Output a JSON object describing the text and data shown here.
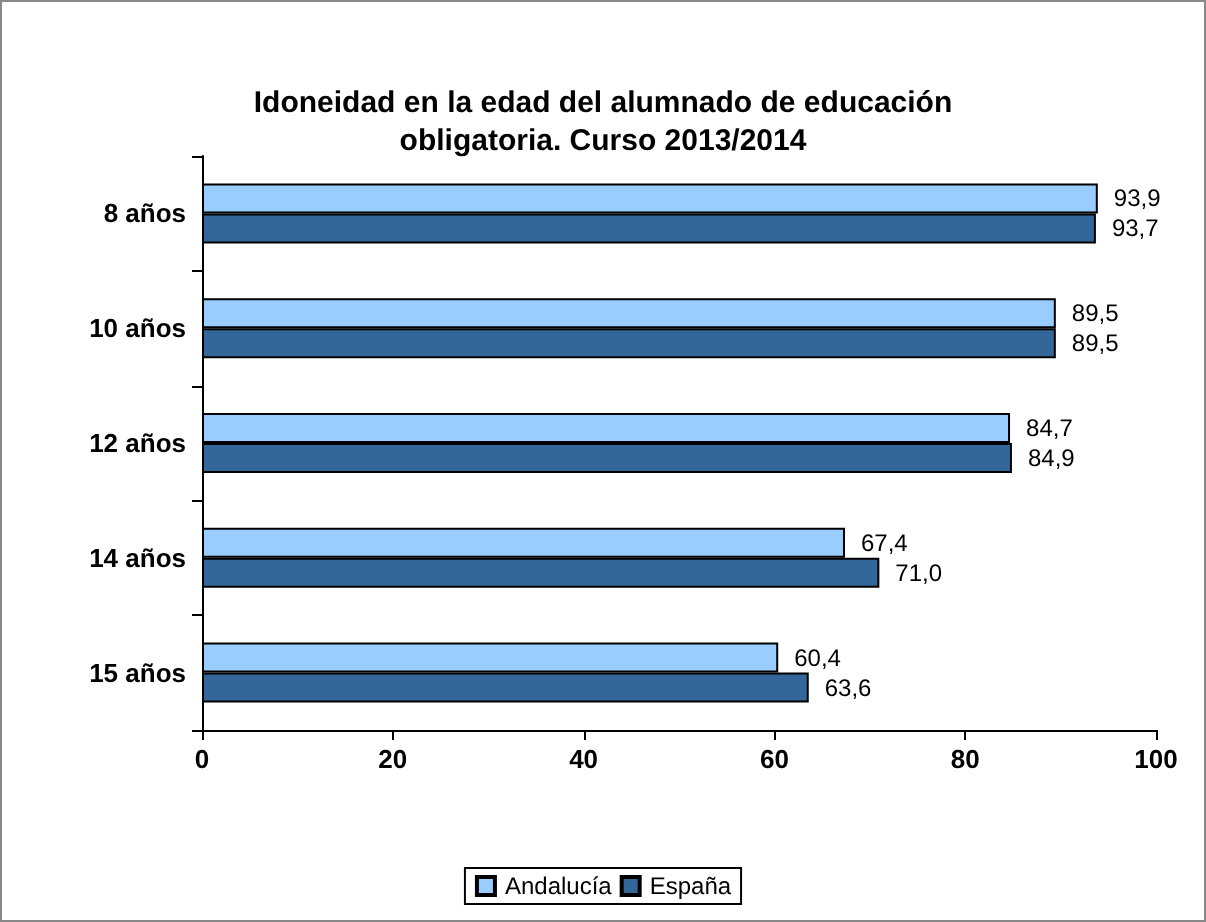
{
  "chart_data": {
    "type": "bar",
    "orientation": "horizontal",
    "title": "Idoneidad en la edad del alumnado de educación\nobligatoria. Curso 2013/2014",
    "categories": [
      "8 años",
      "10 años",
      "12 años",
      "14 años",
      "15 años"
    ],
    "series": [
      {
        "name": "Andalucía",
        "color": "#99ccff",
        "values": [
          93.9,
          89.5,
          84.7,
          67.4,
          60.4
        ],
        "value_labels": [
          "93,9",
          "89,5",
          "84,7",
          "67,4",
          "60,4"
        ]
      },
      {
        "name": "España",
        "color": "#336699",
        "values": [
          93.7,
          89.5,
          84.9,
          71.0,
          63.6
        ],
        "value_labels": [
          "93,7",
          "89,5",
          "84,9",
          "71,0",
          "63,6"
        ]
      }
    ],
    "xlim": [
      0,
      100
    ],
    "xticks": [
      0,
      20,
      40,
      60,
      80,
      100
    ],
    "grid": false,
    "legend": "bottom"
  }
}
